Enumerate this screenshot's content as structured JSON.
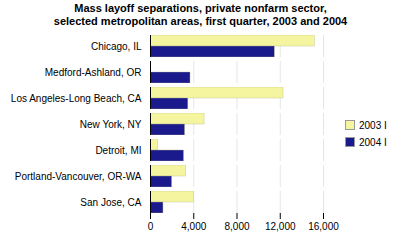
{
  "chart_data": {
    "type": "bar",
    "orientation": "horizontal",
    "title": "Mass layoff separations, private nonfarm sector,\nselected metropolitan areas, first quarter, 2003 and 2004",
    "categories": [
      "Chicago, IL",
      "Medford-Ashland, OR",
      "Los Angeles-Long Beach, CA",
      "New York, NY",
      "Detroit, MI",
      "Portland-Vancouver, OR-WA",
      "San Jose, CA"
    ],
    "series": [
      {
        "name": "2003 I",
        "color": "#f5f5a0",
        "values": [
          15200,
          0,
          12300,
          5000,
          700,
          3300,
          4000
        ]
      },
      {
        "name": "2004 I",
        "color": "#1a1a8c",
        "values": [
          11500,
          3700,
          3500,
          3200,
          3100,
          2000,
          1200
        ]
      }
    ],
    "xlim": [
      0,
      16000
    ],
    "xticks": [
      0,
      {
        "value": 4000,
        "label": "4,000"
      },
      {
        "value": 8000,
        "label": "8,000"
      },
      {
        "value": 12000,
        "label": "12,000"
      },
      {
        "value": 16000,
        "label": "16,000"
      }
    ],
    "grid": true,
    "legend": "right"
  }
}
